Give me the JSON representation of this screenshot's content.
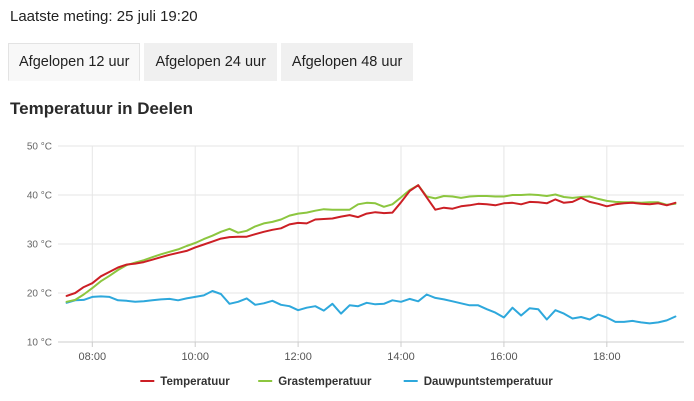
{
  "header": {
    "last_measurement": "Laatste meting: 25 juli 19:20"
  },
  "tabs": [
    {
      "label": "Afgelopen 12 uur",
      "active": true
    },
    {
      "label": "Afgelopen 24 uur",
      "active": false
    },
    {
      "label": "Afgelopen 48 uur",
      "active": false
    }
  ],
  "section": {
    "title": "Temperatuur in Deelen"
  },
  "chart_data": {
    "type": "line",
    "title": "",
    "xlabel": "",
    "ylabel": "",
    "x_ticks": [
      "08:00",
      "10:00",
      "12:00",
      "14:00",
      "16:00",
      "18:00"
    ],
    "y_ticks": [
      "10 °C",
      "20 °C",
      "30 °C",
      "40 °C",
      "50 °C"
    ],
    "y_tick_values": [
      10,
      20,
      30,
      40,
      50
    ],
    "ylim": [
      10,
      50
    ],
    "xlim": [
      "07:20",
      "19:30"
    ],
    "grid": true,
    "legend_position": "bottom",
    "series": [
      {
        "name": "Temperatuur",
        "color": "#cc1f25",
        "x": [
          "07:30",
          "07:40",
          "07:50",
          "08:00",
          "08:10",
          "08:20",
          "08:30",
          "08:40",
          "08:50",
          "09:00",
          "09:10",
          "09:20",
          "09:30",
          "09:40",
          "09:50",
          "10:00",
          "10:10",
          "10:20",
          "10:30",
          "10:40",
          "10:50",
          "11:00",
          "11:10",
          "11:20",
          "11:30",
          "11:40",
          "11:50",
          "12:00",
          "12:10",
          "12:20",
          "12:30",
          "12:40",
          "12:50",
          "13:00",
          "13:10",
          "13:20",
          "13:30",
          "13:40",
          "13:50",
          "14:00",
          "14:10",
          "14:20",
          "14:30",
          "14:40",
          "14:50",
          "15:00",
          "15:10",
          "15:20",
          "15:30",
          "15:40",
          "15:50",
          "16:00",
          "16:10",
          "16:20",
          "16:30",
          "16:40",
          "16:50",
          "17:00",
          "17:10",
          "17:20",
          "17:30",
          "17:40",
          "17:50",
          "18:00",
          "18:10",
          "18:20",
          "18:30",
          "18:40",
          "18:50",
          "19:00",
          "19:10",
          "19:20"
        ],
        "values": [
          19.4,
          20.0,
          21.2,
          22.0,
          23.4,
          24.3,
          25.2,
          25.8,
          26.0,
          26.3,
          26.8,
          27.3,
          27.8,
          28.2,
          28.6,
          29.3,
          29.9,
          30.5,
          31.1,
          31.4,
          31.5,
          31.5,
          32.0,
          32.5,
          32.9,
          33.2,
          34.0,
          34.3,
          34.2,
          35.0,
          35.1,
          35.2,
          35.6,
          35.9,
          35.5,
          36.2,
          36.5,
          36.3,
          36.4,
          38.5,
          40.8,
          42.0,
          39.5,
          37.0,
          37.4,
          37.2,
          37.7,
          37.9,
          38.2,
          38.1,
          37.9,
          38.3,
          38.4,
          38.1,
          38.6,
          38.5,
          38.3,
          39.1,
          38.4,
          38.6,
          39.4,
          38.6,
          38.2,
          37.7,
          38.1,
          38.3,
          38.4,
          38.2,
          38.1,
          38.3,
          37.9,
          38.4
        ]
      },
      {
        "name": "Grastemperatuur",
        "color": "#8cc63f",
        "x": [
          "07:30",
          "07:40",
          "07:50",
          "08:00",
          "08:10",
          "08:20",
          "08:30",
          "08:40",
          "08:50",
          "09:00",
          "09:10",
          "09:20",
          "09:30",
          "09:40",
          "09:50",
          "10:00",
          "10:10",
          "10:20",
          "10:30",
          "10:40",
          "10:50",
          "11:00",
          "11:10",
          "11:20",
          "11:30",
          "11:40",
          "11:50",
          "12:00",
          "12:10",
          "12:20",
          "12:30",
          "12:40",
          "12:50",
          "13:00",
          "13:10",
          "13:20",
          "13:30",
          "13:40",
          "13:50",
          "14:00",
          "14:10",
          "14:20",
          "14:30",
          "14:40",
          "14:50",
          "15:00",
          "15:10",
          "15:20",
          "15:30",
          "15:40",
          "15:50",
          "16:00",
          "16:10",
          "16:20",
          "16:30",
          "16:40",
          "16:50",
          "17:00",
          "17:10",
          "17:20",
          "17:30",
          "17:40",
          "17:50",
          "18:00",
          "18:10",
          "18:20",
          "18:30",
          "18:40",
          "18:50",
          "19:00",
          "19:10",
          "19:20"
        ],
        "values": [
          18.2,
          18.6,
          19.7,
          21.0,
          22.4,
          23.5,
          24.7,
          25.7,
          26.2,
          26.7,
          27.3,
          27.9,
          28.4,
          28.9,
          29.6,
          30.2,
          31.0,
          31.7,
          32.5,
          33.1,
          32.3,
          32.7,
          33.6,
          34.2,
          34.5,
          35.0,
          35.8,
          36.2,
          36.4,
          36.8,
          37.1,
          37.0,
          37.0,
          37.0,
          38.1,
          38.4,
          38.3,
          37.6,
          38.1,
          39.5,
          41.0,
          42.0,
          39.7,
          39.3,
          39.8,
          39.7,
          39.4,
          39.7,
          39.8,
          39.8,
          39.7,
          39.7,
          40.0,
          40.0,
          40.1,
          40.0,
          39.8,
          40.1,
          39.6,
          39.4,
          39.6,
          39.7,
          39.2,
          38.8,
          38.6,
          38.5,
          38.5,
          38.4,
          38.5,
          38.5,
          38.0,
          38.2
        ]
      },
      {
        "name": "Dauwpuntstemperatuur",
        "color": "#2ea8dc",
        "x": [
          "07:30",
          "07:40",
          "07:50",
          "08:00",
          "08:10",
          "08:20",
          "08:30",
          "08:40",
          "08:50",
          "09:00",
          "09:10",
          "09:20",
          "09:30",
          "09:40",
          "09:50",
          "10:00",
          "10:10",
          "10:20",
          "10:30",
          "10:40",
          "10:50",
          "11:00",
          "11:10",
          "11:20",
          "11:30",
          "11:40",
          "11:50",
          "12:00",
          "12:10",
          "12:20",
          "12:30",
          "12:40",
          "12:50",
          "13:00",
          "13:10",
          "13:20",
          "13:30",
          "13:40",
          "13:50",
          "14:00",
          "14:10",
          "14:20",
          "14:30",
          "14:40",
          "14:50",
          "15:00",
          "15:10",
          "15:20",
          "15:30",
          "15:40",
          "15:50",
          "16:00",
          "16:10",
          "16:20",
          "16:30",
          "16:40",
          "16:50",
          "17:00",
          "17:10",
          "17:20",
          "17:30",
          "17:40",
          "17:50",
          "18:00",
          "18:10",
          "18:20",
          "18:30",
          "18:40",
          "18:50",
          "19:00",
          "19:10",
          "19:20"
        ],
        "values": [
          18.0,
          18.5,
          18.6,
          19.2,
          19.3,
          19.2,
          18.5,
          18.4,
          18.2,
          18.3,
          18.5,
          18.7,
          18.8,
          18.5,
          18.9,
          19.2,
          19.5,
          20.4,
          19.8,
          17.8,
          18.2,
          18.9,
          17.6,
          17.9,
          18.4,
          17.6,
          17.3,
          16.5,
          17.0,
          17.3,
          16.4,
          17.8,
          15.8,
          17.5,
          17.3,
          18.0,
          17.7,
          17.8,
          18.5,
          18.2,
          18.8,
          18.3,
          19.7,
          19.0,
          18.7,
          18.3,
          17.9,
          17.5,
          17.5,
          16.7,
          16.0,
          15.0,
          17.0,
          15.4,
          16.9,
          16.7,
          14.6,
          16.5,
          15.8,
          14.8,
          15.1,
          14.6,
          15.6,
          15.0,
          14.1,
          14.1,
          14.3,
          14.0,
          13.8,
          14.0,
          14.4,
          15.2
        ]
      }
    ]
  }
}
